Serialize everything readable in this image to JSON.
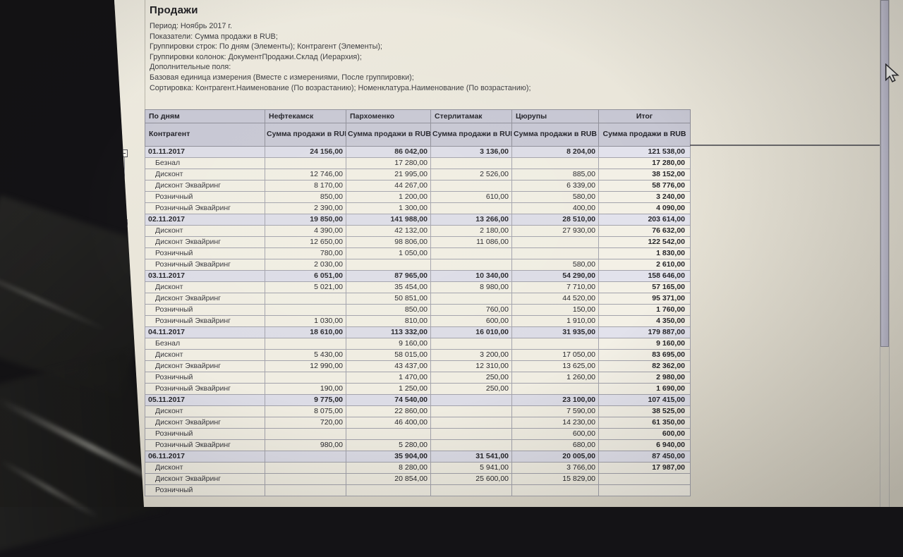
{
  "report": {
    "title": "Продажи",
    "meta_lines": [
      "Период: Ноябрь 2017 г.",
      "Показатели: Сумма продажи в RUB;",
      "Группировки строк: По дням (Элементы); Контрагент (Элементы);",
      "Группировки колонок: ДокументПродажи.Склад (Иерархия);",
      "Дополнительные поля:",
      "Базовая единица измерения (Вместе с измерениями, После группировки);",
      "Сортировка: Контрагент.Наименование (По возрастанию); Номенклатура.Наименование (По возрастанию);"
    ]
  },
  "table": {
    "row_header": {
      "line1": "По дням",
      "line2": "Контрагент"
    },
    "measure_label": "Сумма продажи в RUB",
    "columns": [
      {
        "name": "Нефтекамск"
      },
      {
        "name": "Пархоменко"
      },
      {
        "name": "Стерлитамак"
      },
      {
        "name": "Цюрупы"
      },
      {
        "name": "Итог"
      }
    ],
    "rows": [
      {
        "type": "group",
        "label": "01.11.2017",
        "values": [
          "24 156,00",
          "86 042,00",
          "3 136,00",
          "8 204,00",
          "121 538,00"
        ]
      },
      {
        "type": "detail",
        "label": "Безнал",
        "values": [
          "",
          "17 280,00",
          "",
          "",
          "17 280,00"
        ]
      },
      {
        "type": "detail",
        "label": "Дисконт",
        "values": [
          "12 746,00",
          "21 995,00",
          "2 526,00",
          "885,00",
          "38 152,00"
        ]
      },
      {
        "type": "detail",
        "label": "Дисконт Эквайринг",
        "values": [
          "8 170,00",
          "44 267,00",
          "",
          "6 339,00",
          "58 776,00"
        ]
      },
      {
        "type": "detail",
        "label": "Розничный",
        "values": [
          "850,00",
          "1 200,00",
          "610,00",
          "580,00",
          "3 240,00"
        ]
      },
      {
        "type": "detail",
        "label": "Розничный Эквайринг",
        "values": [
          "2 390,00",
          "1 300,00",
          "",
          "400,00",
          "4 090,00"
        ]
      },
      {
        "type": "group",
        "label": "02.11.2017",
        "values": [
          "19 850,00",
          "141 988,00",
          "13 266,00",
          "28 510,00",
          "203 614,00"
        ]
      },
      {
        "type": "detail",
        "label": "Дисконт",
        "values": [
          "4 390,00",
          "42 132,00",
          "2 180,00",
          "27 930,00",
          "76 632,00"
        ]
      },
      {
        "type": "detail",
        "label": "Дисконт Эквайринг",
        "values": [
          "12 650,00",
          "98 806,00",
          "11 086,00",
          "",
          "122 542,00"
        ]
      },
      {
        "type": "detail",
        "label": "Розничный",
        "values": [
          "780,00",
          "1 050,00",
          "",
          "",
          "1 830,00"
        ]
      },
      {
        "type": "detail",
        "label": "Розничный Эквайринг",
        "values": [
          "2 030,00",
          "",
          "",
          "580,00",
          "2 610,00"
        ]
      },
      {
        "type": "group",
        "label": "03.11.2017",
        "values": [
          "6 051,00",
          "87 965,00",
          "10 340,00",
          "54 290,00",
          "158 646,00"
        ]
      },
      {
        "type": "detail",
        "label": "Дисконт",
        "values": [
          "5 021,00",
          "35 454,00",
          "8 980,00",
          "7 710,00",
          "57 165,00"
        ]
      },
      {
        "type": "detail",
        "label": "Дисконт Эквайринг",
        "values": [
          "",
          "50 851,00",
          "",
          "44 520,00",
          "95 371,00"
        ]
      },
      {
        "type": "detail",
        "label": "Розничный",
        "values": [
          "",
          "850,00",
          "760,00",
          "150,00",
          "1 760,00"
        ]
      },
      {
        "type": "detail",
        "label": "Розничный Эквайринг",
        "values": [
          "1 030,00",
          "810,00",
          "600,00",
          "1 910,00",
          "4 350,00"
        ]
      },
      {
        "type": "group",
        "label": "04.11.2017",
        "values": [
          "18 610,00",
          "113 332,00",
          "16 010,00",
          "31 935,00",
          "179 887,00"
        ]
      },
      {
        "type": "detail",
        "label": "Безнал",
        "values": [
          "",
          "9 160,00",
          "",
          "",
          "9 160,00"
        ]
      },
      {
        "type": "detail",
        "label": "Дисконт",
        "values": [
          "5 430,00",
          "58 015,00",
          "3 200,00",
          "17 050,00",
          "83 695,00"
        ]
      },
      {
        "type": "detail",
        "label": "Дисконт Эквайринг",
        "values": [
          "12 990,00",
          "43 437,00",
          "12 310,00",
          "13 625,00",
          "82 362,00"
        ]
      },
      {
        "type": "detail",
        "label": "Розничный",
        "values": [
          "",
          "1 470,00",
          "250,00",
          "1 260,00",
          "2 980,00"
        ]
      },
      {
        "type": "detail",
        "label": "Розничный Эквайринг",
        "values": [
          "190,00",
          "1 250,00",
          "250,00",
          "",
          "1 690,00"
        ]
      },
      {
        "type": "group",
        "label": "05.11.2017",
        "values": [
          "9 775,00",
          "74 540,00",
          "",
          "23 100,00",
          "107 415,00"
        ]
      },
      {
        "type": "detail",
        "label": "Дисконт",
        "values": [
          "8 075,00",
          "22 860,00",
          "",
          "7 590,00",
          "38 525,00"
        ]
      },
      {
        "type": "detail",
        "label": "Дисконт Эквайринг",
        "values": [
          "720,00",
          "46 400,00",
          "",
          "14 230,00",
          "61 350,00"
        ]
      },
      {
        "type": "detail",
        "label": "Розничный",
        "values": [
          "",
          "",
          "",
          "600,00",
          "600,00"
        ]
      },
      {
        "type": "detail",
        "label": "Розничный Эквайринг",
        "values": [
          "980,00",
          "5 280,00",
          "",
          "680,00",
          "6 940,00"
        ]
      },
      {
        "type": "group",
        "label": "06.11.2017",
        "values": [
          "",
          "35 904,00",
          "31 541,00",
          "20 005,00",
          "87 450,00"
        ]
      },
      {
        "type": "detail",
        "label": "Дисконт",
        "values": [
          "",
          "8 280,00",
          "5 941,00",
          "3 766,00",
          "17 987,00"
        ]
      },
      {
        "type": "detail",
        "label": "Дисконт Эквайринг",
        "values": [
          "",
          "20 854,00",
          "25 600,00",
          "15 829,00",
          ""
        ]
      },
      {
        "type": "detail",
        "label": "Розничный",
        "values": [
          "",
          "",
          "",
          "",
          ""
        ]
      }
    ]
  },
  "icons": {
    "group_collapse": "minus-box-icon",
    "mouse_cursor": "arrow-cursor-icon"
  },
  "colors": {
    "screen_bg": "#e9e5d9",
    "bezel_bg": "#131215",
    "header_bg": "#c7c7d3",
    "group_row_bg": "#dcdce6",
    "detail_row_bg": "#f0ede2",
    "total_col_bg": "#f3f0e6",
    "group_total_bg": "#e2e2ec",
    "grid_line": "#a3a3ac",
    "text": "#26262a"
  }
}
